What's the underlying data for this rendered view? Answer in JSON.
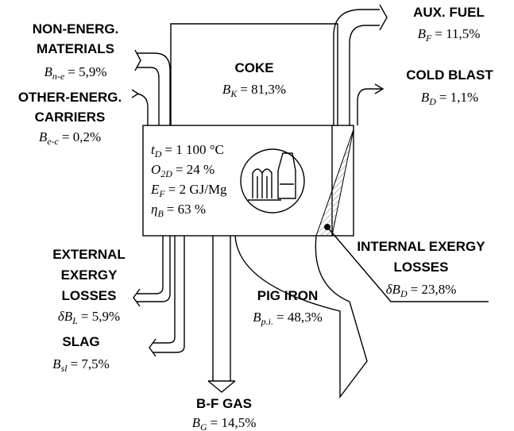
{
  "flows": [
    {
      "label": [
        "NON-ENERG.",
        "MATERIALS"
      ],
      "symbol": "B",
      "sub": "n-e",
      "value": "= 5,9%"
    },
    {
      "label": [
        "OTHER-ENERG.",
        "CARRIERS"
      ],
      "symbol": "B",
      "sub": "e-c",
      "value": "= 0,2%"
    },
    {
      "label": [
        "COKE"
      ],
      "symbol": "B",
      "sub": "K",
      "value": "= 81,3%"
    },
    {
      "label": [
        "AUX. FUEL"
      ],
      "symbol": "B",
      "sub": "F",
      "value": "= 11,5%"
    },
    {
      "label": [
        "COLD BLAST"
      ],
      "symbol": "B",
      "sub": "D",
      "value": "= 1,1%"
    },
    {
      "label": [
        "EXTERNAL",
        "EXERGY",
        "LOSSES"
      ],
      "symbol": "δB",
      "sub": "L",
      "value": "= 5,9%"
    },
    {
      "label": [
        "SLAG"
      ],
      "symbol": "B",
      "sub": "sl",
      "value": "= 7,5%"
    },
    {
      "label": [
        "B-F GAS"
      ],
      "symbol": "B",
      "sub": "G",
      "value": "= 14,5%"
    },
    {
      "label": [
        "PIG IRON"
      ],
      "symbol": "B",
      "sub": "p.i.",
      "value": "= 48,3%"
    },
    {
      "label": [
        "INTERNAL EXERGY",
        "LOSSES"
      ],
      "symbol": "δB",
      "sub": "D",
      "value": "= 23,8%"
    }
  ],
  "parameters": [
    {
      "symbol": "t",
      "sub": "D",
      "value": "= 1 100 °C"
    },
    {
      "symbol": "O",
      "sub": "2D",
      "value": "= 24 %"
    },
    {
      "symbol": "E",
      "sub": "F",
      "value": "= 2 GJ/Mg"
    },
    {
      "symbol": "η",
      "sub": "B",
      "value": "= 63 %"
    }
  ]
}
